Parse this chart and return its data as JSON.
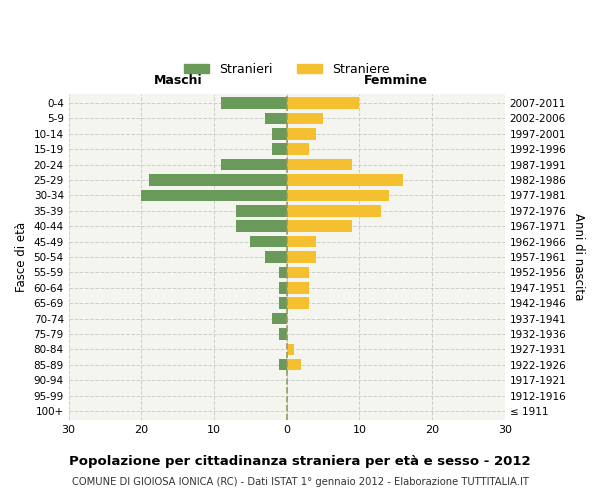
{
  "age_groups": [
    "100+",
    "95-99",
    "90-94",
    "85-89",
    "80-84",
    "75-79",
    "70-74",
    "65-69",
    "60-64",
    "55-59",
    "50-54",
    "45-49",
    "40-44",
    "35-39",
    "30-34",
    "25-29",
    "20-24",
    "15-19",
    "10-14",
    "5-9",
    "0-4"
  ],
  "birth_years": [
    "≤ 1911",
    "1912-1916",
    "1917-1921",
    "1922-1926",
    "1927-1931",
    "1932-1936",
    "1937-1941",
    "1942-1946",
    "1947-1951",
    "1952-1956",
    "1957-1961",
    "1962-1966",
    "1967-1971",
    "1972-1976",
    "1977-1981",
    "1982-1986",
    "1987-1991",
    "1992-1996",
    "1997-2001",
    "2002-2006",
    "2007-2011"
  ],
  "maschi": [
    0,
    0,
    0,
    1,
    0,
    1,
    2,
    1,
    1,
    1,
    3,
    5,
    7,
    7,
    20,
    19,
    9,
    2,
    2,
    3,
    9
  ],
  "femmine": [
    0,
    0,
    0,
    2,
    1,
    0,
    0,
    3,
    3,
    3,
    4,
    4,
    9,
    13,
    14,
    16,
    9,
    3,
    4,
    5,
    10
  ],
  "color_maschi": "#6a9a5a",
  "color_femmine": "#f5c030",
  "xlim": 30,
  "xlabel_left": "Maschi",
  "xlabel_right": "Femmine",
  "ylabel_left": "Fasce di età",
  "ylabel_right": "Anni di nascita",
  "title": "Popolazione per cittadinanza straniera per età e sesso - 2012",
  "subtitle": "COMUNE DI GIOIOSA IONICA (RC) - Dati ISTAT 1° gennaio 2012 - Elaborazione TUTTITALIA.IT",
  "legend_stranieri": "Stranieri",
  "legend_straniere": "Straniere",
  "background_color": "#f5f5f0",
  "grid_color": "#cccccc"
}
